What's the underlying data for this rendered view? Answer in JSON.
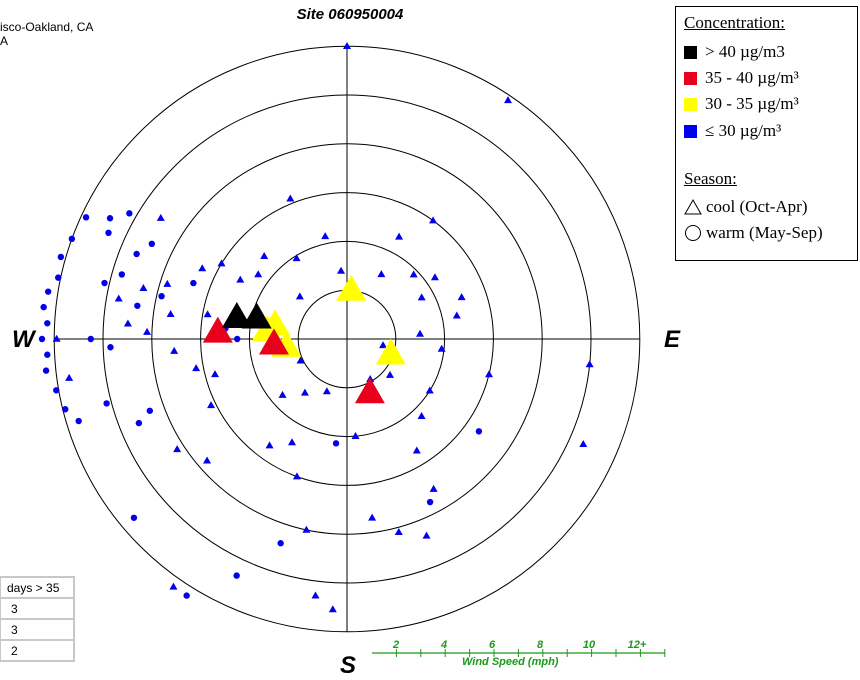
{
  "title": "Site 060950004",
  "location_lines": [
    "isco-Oakland, CA",
    "A"
  ],
  "compass": {
    "west": "W",
    "east": "E",
    "south": "S"
  },
  "legend": {
    "concentration_header": "Concentration:",
    "levels": [
      {
        "label": "> 40 µg/m3",
        "color": "#000000"
      },
      {
        "label": "35 - 40 µg/m³",
        "color": "#e8001c"
      },
      {
        "label": "30 - 35 µg/m³",
        "color": "#ffff00"
      },
      {
        "label": "≤ 30 µg/m³",
        "color": "#0000ee"
      }
    ],
    "season_header": "Season:",
    "seasons": [
      {
        "label": "cool (Oct-Apr)",
        "icon": "triangle-icon"
      },
      {
        "label": "warm (May-Sep)",
        "icon": "circle-icon"
      }
    ]
  },
  "days_table": {
    "header": "days > 35",
    "values": [
      "3",
      "3",
      "2"
    ]
  },
  "wind_scale": {
    "title": "Wind Speed (mph)",
    "ticks": [
      "2",
      "4",
      "6",
      "8",
      "10",
      "12+"
    ]
  },
  "chart_data": {
    "type": "scatter",
    "coordinate_system": "polar wind rose",
    "radial_unit": "mph",
    "radial_rings": [
      2,
      4,
      6,
      8,
      10,
      12
    ],
    "angle_convention": "direction toward which wind blows; 0=N, 90=E, 180=S, 270=W",
    "series": [
      {
        "name": "> 40 µg/m3 cool",
        "color": "#000000",
        "marker": "triangle",
        "size": "large",
        "points": [
          [
            4.6,
            281
          ],
          [
            3.8,
            283
          ]
        ]
      },
      {
        "name": "35 - 40 µg/m³ cool",
        "color": "#e8001c",
        "marker": "triangle",
        "size": "large",
        "points": [
          [
            5.3,
            273
          ],
          [
            3.0,
            266
          ],
          [
            2.4,
            157
          ]
        ]
      },
      {
        "name": "30 - 35 µg/m³ cool",
        "color": "#ffff00",
        "marker": "triangle",
        "size": "large",
        "points": [
          [
            2.0,
            5
          ],
          [
            3.3,
            276
          ],
          [
            2.5,
            263
          ],
          [
            1.9,
            109
          ],
          [
            3.0,
            281
          ]
        ]
      },
      {
        "name": "≤ 30 µg/m³ cool",
        "color": "#0000ee",
        "marker": "triangle",
        "size": "small",
        "points": [
          [
            12.4,
            215
          ],
          [
            12.0,
            0
          ],
          [
            11.8,
            34
          ],
          [
            10.6,
            114
          ],
          [
            10.0,
            96
          ],
          [
            11.9,
            270
          ],
          [
            11.5,
            262
          ],
          [
            9.1,
            303
          ],
          [
            9.5,
            280
          ],
          [
            8.6,
            284
          ],
          [
            9.0,
            274
          ],
          [
            8.2,
            272
          ],
          [
            7.3,
            278
          ],
          [
            7.7,
            287
          ],
          [
            6.6,
            296
          ],
          [
            5.0,
            299
          ],
          [
            6.0,
            301
          ],
          [
            5.8,
            280
          ],
          [
            7.1,
            266
          ],
          [
            6.3,
            259
          ],
          [
            5.6,
            255
          ],
          [
            6.2,
            244
          ],
          [
            8.3,
            237
          ],
          [
            7.6,
            229
          ],
          [
            5.4,
            216
          ],
          [
            4.8,
            208
          ],
          [
            6.0,
            200
          ],
          [
            8.0,
            192
          ],
          [
            10.6,
            187
          ],
          [
            11.1,
            183
          ],
          [
            4.0,
            175
          ],
          [
            7.4,
            172
          ],
          [
            8.2,
            165
          ],
          [
            8.7,
            158
          ],
          [
            7.1,
            150
          ],
          [
            5.4,
            148
          ],
          [
            4.4,
            136
          ],
          [
            4.0,
            122
          ],
          [
            6.0,
            104
          ],
          [
            3.9,
            96
          ],
          [
            3.0,
            86
          ],
          [
            4.6,
            78
          ],
          [
            5.0,
            70
          ],
          [
            3.5,
            61
          ],
          [
            4.4,
            55
          ],
          [
            3.8,
            46
          ],
          [
            6.0,
            36
          ],
          [
            4.7,
            27
          ],
          [
            3.0,
            28
          ],
          [
            2.8,
            355
          ],
          [
            4.3,
            348
          ],
          [
            6.2,
            338
          ],
          [
            3.9,
            328
          ],
          [
            4.8,
            315
          ],
          [
            4.5,
            306
          ],
          [
            2.6,
            312
          ],
          [
            3.5,
            229
          ],
          [
            2.8,
            218
          ],
          [
            2.1,
            245
          ],
          [
            1.5,
            100
          ],
          [
            1.9,
            150
          ],
          [
            2.3,
            130
          ],
          [
            2.3,
            201
          ]
        ]
      },
      {
        "name": "≤ 30 µg/m³ warm",
        "color": "#0000ee",
        "marker": "circle",
        "size": "small",
        "points": [
          [
            12.0,
            290
          ],
          [
            12.2,
            286
          ],
          [
            12.1,
            282
          ],
          [
            12.4,
            279
          ],
          [
            12.5,
            276
          ],
          [
            12.3,
            273
          ],
          [
            12.5,
            270
          ],
          [
            12.3,
            267
          ],
          [
            12.4,
            264
          ],
          [
            12.1,
            260
          ],
          [
            11.9,
            256
          ],
          [
            11.5,
            253
          ],
          [
            11.8,
            295
          ],
          [
            10.9,
            297
          ],
          [
            10.3,
            300
          ],
          [
            10.7,
            294
          ],
          [
            9.3,
            292
          ],
          [
            8.9,
            296
          ],
          [
            9.6,
            286
          ],
          [
            10.2,
            283
          ],
          [
            8.7,
            279
          ],
          [
            7.8,
            283
          ],
          [
            10.5,
            270
          ],
          [
            9.7,
            268
          ],
          [
            10.2,
            255
          ],
          [
            9.2,
            248
          ],
          [
            8.6,
            250
          ],
          [
            11.4,
            230
          ],
          [
            12.4,
            212
          ],
          [
            10.7,
            205
          ],
          [
            8.8,
            198
          ],
          [
            6.7,
            290
          ],
          [
            5.0,
            275
          ],
          [
            4.5,
            270
          ],
          [
            4.3,
            186
          ],
          [
            7.5,
            153
          ],
          [
            6.6,
            125
          ]
        ]
      }
    ]
  }
}
